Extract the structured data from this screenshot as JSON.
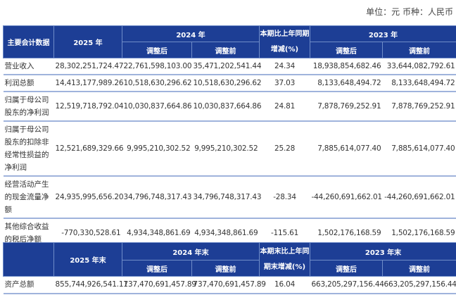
{
  "unit_note": "单位：元 币种：人民币",
  "colors": {
    "header_bg": "#1d3e95",
    "row_divider": "#9fb3dc"
  },
  "table1": {
    "headers": {
      "item": "主要会计数据",
      "y2025": "2025 年",
      "y2024": "2024 年",
      "change": "本期比上年同期增减(%)",
      "y2023": "2023 年",
      "adjusted": "调整后",
      "before": "调整前"
    },
    "rows": [
      {
        "label": "营业收入",
        "v2025": "28,302,251,724.47",
        "v2024a": "22,761,598,103.00",
        "v2024b": "35,471,202,541.44",
        "change": "24.34",
        "v2023a": "18,938,854,682.46",
        "v2023b": "33,644,082,792.61"
      },
      {
        "label": "利润总额",
        "v2025": "14,413,177,989.26",
        "v2024a": "10,518,630,296.62",
        "v2024b": "10,518,630,296.62",
        "change": "37.03",
        "v2023a": "8,133,648,494.72",
        "v2023b": "8,133,648,494.72"
      },
      {
        "label": "归属于母公司股东的净利润",
        "v2025": "12,519,718,792.04",
        "v2024a": "10,030,837,664.86",
        "v2024b": "10,030,837,664.86",
        "change": "24.81",
        "v2023a": "7,878,769,252.91",
        "v2023b": "7,878,769,252.91"
      },
      {
        "label": "归属于母公司股东的扣除非经常性损益的净利润",
        "v2025": "12,521,689,329.66",
        "v2024a": "9,995,210,302.52",
        "v2024b": "9,995,210,302.52",
        "change": "25.28",
        "v2023a": "7,885,614,077.40",
        "v2023b": "7,885,614,077.40"
      },
      {
        "label": "经营活动产生的现金流量净额",
        "v2025": "24,935,995,656.20",
        "v2024a": "34,796,748,317.43",
        "v2024b": "34,796,748,317.43",
        "change": "-28.34",
        "v2023a": "-44,260,691,662.01",
        "v2023b": "-44,260,691,662.01"
      },
      {
        "label": "其他综合收益的税后净额",
        "v2025": "-770,330,528.61",
        "v2024a": "4,934,348,861.69",
        "v2024b": "4,934,348,861.69",
        "change": "-115.61",
        "v2023a": "1,502,176,168.59",
        "v2023b": "1,502,176,168.59"
      }
    ]
  },
  "table2": {
    "headers": {
      "item": "",
      "y2025": "2025 年末",
      "y2024": "2024 年末",
      "change": "本期末比上年同期末增减(%)",
      "y2023": "2023 年末",
      "adjusted": "调整后",
      "before": "调整前"
    },
    "rows": [
      {
        "label": "资产总额",
        "v2025": "855,744,926,541.11",
        "v2024a": "737,470,691,457.89",
        "v2024b": "737,470,691,457.89",
        "change": "16.04",
        "v2023a": "663,205,297,156.44",
        "v2023b": "663,205,297,156.44"
      }
    ]
  }
}
